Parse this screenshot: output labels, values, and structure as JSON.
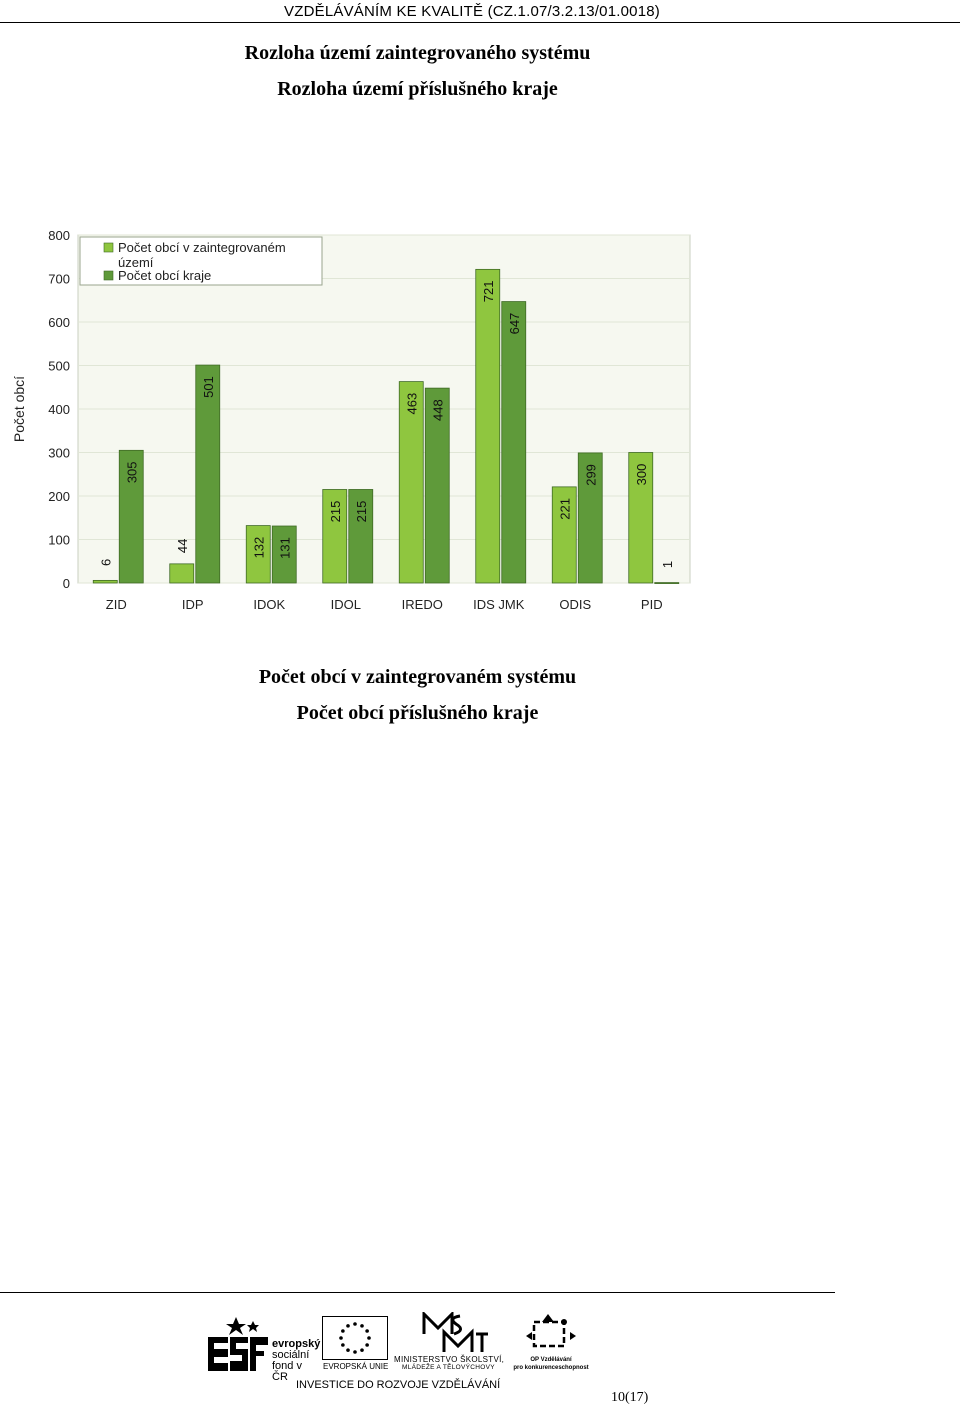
{
  "header": {
    "project": "VZDĚLÁVÁNÍM KE KVALITĚ (CZ.1.07/3.2.13/01.0018)"
  },
  "titles": {
    "line1": "Rozloha území zaintegrovaného systému",
    "line2": "Rozloha území příslušného kraje"
  },
  "captions": {
    "line1": "Počet obcí v zaintegrovaném systému",
    "line2": "Počet obcí příslušného kraje"
  },
  "chart_data": {
    "type": "bar",
    "categories": [
      "ZID",
      "IDP",
      "IDOK",
      "IDOL",
      "IREDO",
      "IDS JMK",
      "ODIS",
      "PID"
    ],
    "series": [
      {
        "name": "Počet obcí v zaintegrovaném území",
        "color": "#8fc63f",
        "values": [
          6,
          44,
          132,
          215,
          463,
          721,
          221,
          300
        ]
      },
      {
        "name": "Počet obcí kraje",
        "color": "#5f9a3a",
        "values": [
          305,
          501,
          131,
          215,
          448,
          647,
          299,
          1
        ]
      }
    ],
    "ylabel": "Počet obcí",
    "xlabel": "",
    "ylim": [
      0,
      800
    ],
    "yticks": [
      0,
      100,
      200,
      300,
      400,
      500,
      600,
      700,
      800
    ],
    "grid": true,
    "legend_position": "top-left",
    "legend_lines": [
      "Počet obcí v zaintegrovaném",
      "území",
      "Počet obcí kraje"
    ]
  },
  "footer": {
    "esf": {
      "line1": "evropský",
      "line2": "sociální",
      "line3": "fond v ČR"
    },
    "eu": "EVROPSKÁ UNIE",
    "msmt": {
      "line1": "MINISTERSTVO ŠKOLSTVÍ,",
      "line2": "MLÁDEŽE A TĚLOVÝCHOVY"
    },
    "op": {
      "line1": "OP Vzdělávání",
      "line2": "pro konkurenceschopnost"
    },
    "slogan": "INVESTICE DO ROZVOJE VZDĚLÁVÁNÍ",
    "page_number": "10(17)"
  }
}
